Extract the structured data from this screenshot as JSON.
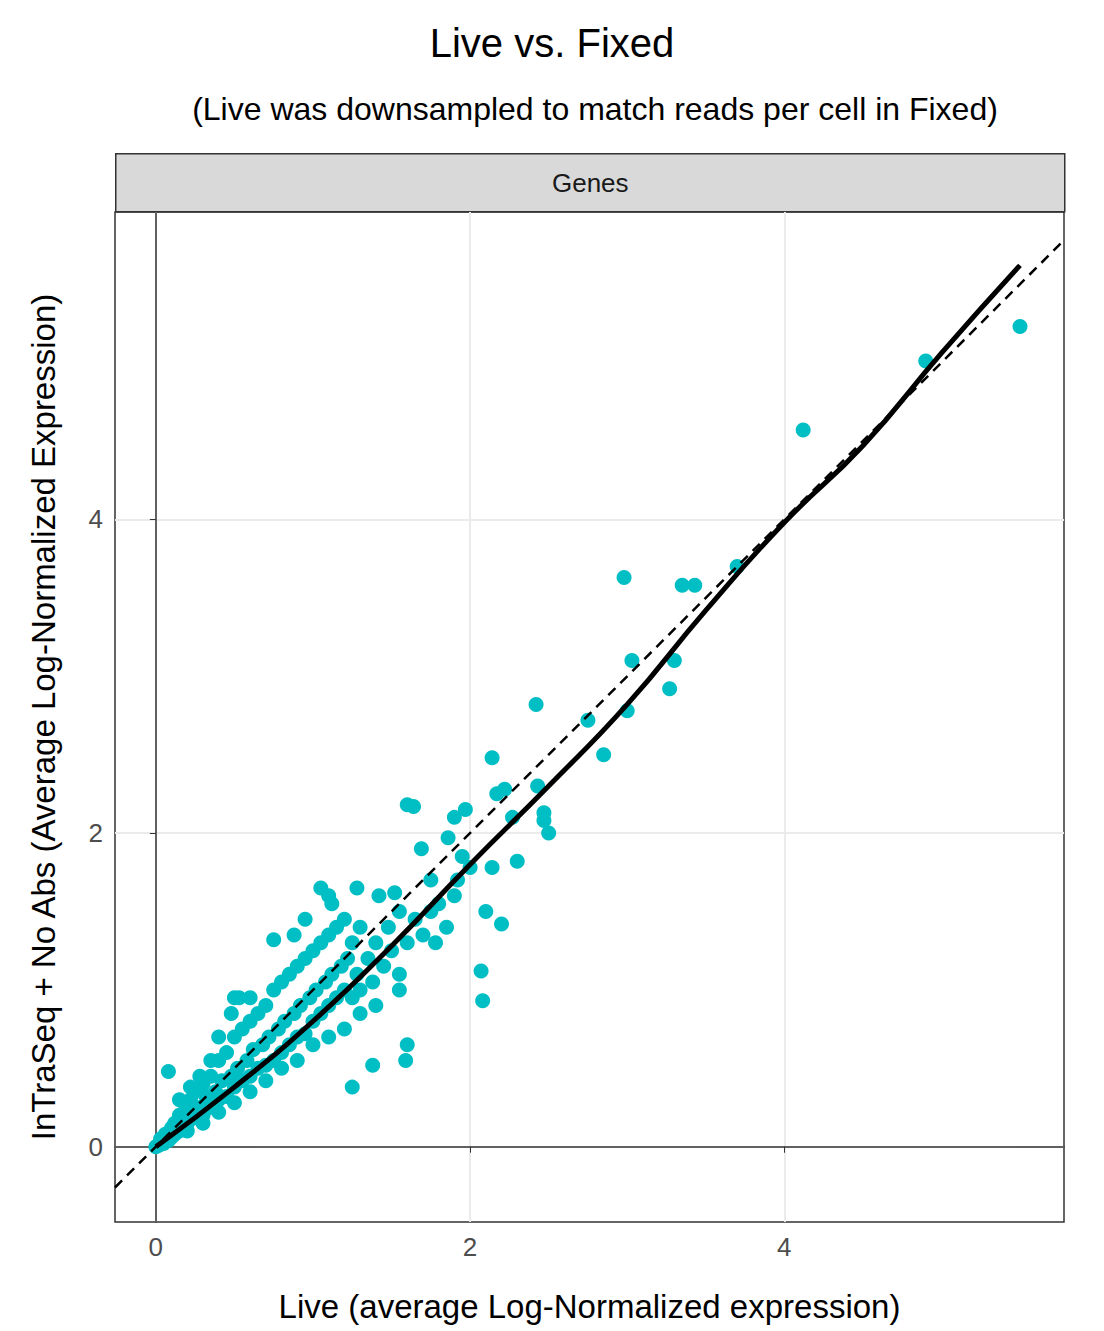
{
  "chart_data": {
    "type": "scatter",
    "title": "Live vs. Fixed",
    "subtitle": "(Live was downsampled to match reads per cell in Fixed)",
    "annotations": [
      "Genes"
    ],
    "x_label": "Live (average Log-Normalized expression)",
    "y_label": "InTraSeq + No Abs (Average Log-Normalized Expression)",
    "xlim": [
      -0.26,
      5.78
    ],
    "ylim": [
      -0.48,
      5.96
    ],
    "xticks": [
      0,
      2,
      4
    ],
    "yticks": [
      0,
      2,
      4
    ],
    "grid": true,
    "series": [
      {
        "type": "scatter",
        "color": "#00BFC4",
        "marker": "circle",
        "x": [
          0,
          0.02,
          0.03,
          0.05,
          0.06,
          0.08,
          0.1,
          0.1,
          0.12,
          0.12,
          0.15,
          0.15,
          0.18,
          0.18,
          0.2,
          0.2,
          0.22,
          0.23,
          0.25,
          0.25,
          0.28,
          0.3,
          0.3,
          0.32,
          0.35,
          0.35,
          0.38,
          0.4,
          0.4,
          0.42,
          0.45,
          0.45,
          0.48,
          0.5,
          0.5,
          0.52,
          0.55,
          0.55,
          0.58,
          0.6,
          0.6,
          0.62,
          0.65,
          0.65,
          0.68,
          0.7,
          0.7,
          0.72,
          0.75,
          0.75,
          0.78,
          0.8,
          0.8,
          0.82,
          0.85,
          0.85,
          0.88,
          0.9,
          0.9,
          0.92,
          0.95,
          0.95,
          0.98,
          1.0,
          1.0,
          1.02,
          1.05,
          1.05,
          1.08,
          1.1,
          1.1,
          1.12,
          1.15,
          1.15,
          1.18,
          1.2,
          1.2,
          1.22,
          1.25,
          1.25,
          1.28,
          1.3,
          1.3,
          1.35,
          1.38,
          1.4,
          1.45,
          1.48,
          1.5,
          1.55,
          1.55,
          1.6,
          1.65,
          1.7,
          1.75,
          1.78,
          1.85,
          1.9,
          1.2,
          1.1,
          1.0,
          0.9,
          0.8,
          0.7,
          0.6,
          0.5,
          0.4,
          0.3,
          0.2,
          0.35,
          0.28,
          0.22,
          0.15,
          0.6,
          0.48,
          0.4,
          1.3,
          1.4,
          1.28,
          0.5,
          0.08,
          0.53,
          0.75,
          0.88,
          0.95,
          1.1,
          1.05,
          1.12,
          1.42,
          1.52,
          1.25,
          1.38,
          1.59,
          1.6,
          1.55,
          1.6,
          1.64,
          1.69,
          1.75,
          1.8,
          1.86,
          1.9,
          1.92,
          1.95,
          1.97,
          2.0,
          2.07,
          2.08,
          2.1,
          2.14,
          2.14,
          2.17,
          2.2,
          2.22,
          2.27,
          2.3,
          2.42,
          2.43,
          2.47,
          2.47,
          2.5,
          2.75,
          2.85,
          2.98,
          3.0,
          3.03,
          3.27,
          3.3,
          3.35,
          3.43,
          3.7,
          4.12,
          4.9,
          5.5
        ],
        "values": [
          0,
          0.01,
          0.05,
          0.02,
          0.08,
          0.04,
          0.12,
          0.06,
          0.15,
          0.08,
          0.2,
          0.1,
          0.22,
          0.12,
          0.28,
          0.15,
          0.3,
          0.18,
          0.35,
          0.2,
          0.25,
          0.4,
          0.2,
          0.32,
          0.45,
          0.25,
          0.35,
          0.55,
          0.3,
          0.42,
          0.6,
          0.32,
          0.45,
          0.7,
          0.38,
          0.5,
          0.75,
          0.42,
          0.55,
          0.8,
          0.45,
          0.62,
          0.85,
          0.5,
          0.65,
          0.9,
          0.52,
          0.7,
          1.0,
          0.55,
          0.75,
          1.05,
          0.6,
          0.8,
          1.1,
          0.65,
          0.85,
          1.15,
          0.7,
          0.9,
          1.2,
          0.72,
          0.95,
          1.25,
          0.8,
          1.0,
          1.3,
          0.85,
          1.05,
          1.35,
          0.9,
          1.1,
          1.4,
          0.95,
          1.15,
          1.45,
          1.0,
          1.2,
          1.3,
          0.95,
          1.1,
          1.4,
          1.0,
          1.2,
          1.05,
          1.3,
          1.15,
          1.4,
          1.25,
          1.5,
          1.1,
          1.3,
          1.45,
          1.35,
          1.5,
          1.3,
          1.4,
          1.6,
          0.75,
          0.7,
          0.65,
          0.55,
          0.5,
          0.42,
          0.35,
          0.28,
          0.22,
          0.15,
          0.1,
          0.55,
          0.45,
          0.38,
          0.3,
          0.95,
          0.85,
          0.7,
          0.85,
          0.9,
          1.65,
          0.95,
          0.48,
          0.95,
          1.32,
          1.35,
          1.45,
          1.6,
          1.65,
          1.55,
          1.6,
          1.62,
          0.38,
          0.52,
          0.55,
          0.65,
          1.0,
          2.18,
          2.17,
          1.9,
          1.7,
          1.55,
          1.97,
          2.1,
          1.7,
          1.85,
          2.15,
          1.78,
          1.12,
          0.93,
          1.5,
          2.48,
          1.78,
          2.25,
          1.42,
          2.28,
          2.1,
          1.82,
          2.82,
          2.3,
          2.08,
          2.13,
          2.0,
          2.72,
          2.5,
          3.63,
          2.78,
          3.1,
          2.92,
          3.1,
          3.58,
          3.58,
          3.7,
          4.57,
          5.01,
          5.23
        ]
      },
      {
        "type": "line",
        "color": "#000000",
        "line_style": "solid",
        "x": [
          0,
          0.5,
          1,
          1.5,
          2,
          2.5,
          3,
          3.5,
          4,
          4.5,
          5,
          5.5
        ],
        "values": [
          0,
          0.38,
          0.8,
          1.28,
          1.8,
          2.3,
          2.82,
          3.42,
          3.98,
          4.47,
          5.06,
          5.62
        ]
      },
      {
        "type": "line",
        "color": "#000000",
        "line_style": "dashed",
        "x": [
          -0.26,
          5.78
        ],
        "values": [
          -0.26,
          5.78
        ]
      }
    ]
  }
}
